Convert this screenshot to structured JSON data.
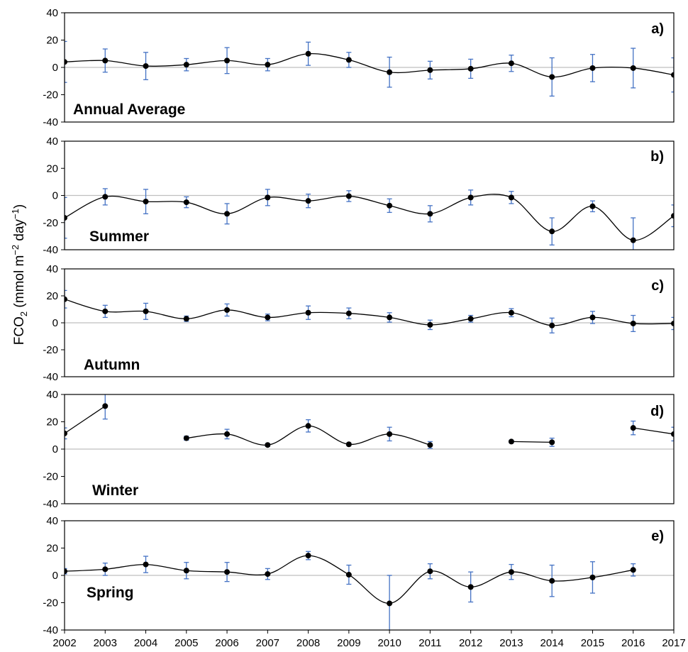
{
  "chart_data": {
    "type": "line",
    "x": [
      2002,
      2003,
      2004,
      2005,
      2006,
      2007,
      2008,
      2009,
      2010,
      2011,
      2012,
      2013,
      2014,
      2015,
      2016,
      2017
    ],
    "x_tick_labels": [
      "2002",
      "2003",
      "2004",
      "2005",
      "2006",
      "2007",
      "2008",
      "2009",
      "2010",
      "2011",
      "2012",
      "2013",
      "2014",
      "2015",
      "2016",
      "2017"
    ],
    "ylabel": "FCO2 (mmol m−2 day−1)",
    "ylabel_parts": {
      "main": "FCO",
      "sub": "2",
      "rest": " (mmol m",
      "sup1": "−2",
      "mid": " day",
      "sup2": "−1",
      "close": ")"
    },
    "ylim": [
      -40,
      40
    ],
    "y_ticks": [
      -40,
      -20,
      0,
      20,
      40
    ],
    "y_tick_labels": [
      "-40",
      "-20",
      "0",
      "20",
      "40"
    ],
    "colors": {
      "line": "#000000",
      "marker": "#000000",
      "error_bar": "#4472c4",
      "zero_line": "#bfbfbf",
      "frame": "#000000"
    },
    "panels": [
      {
        "letter": "a)",
        "label": "Annual Average",
        "values": [
          4,
          5,
          1,
          2,
          5,
          2,
          10,
          5.5,
          -3.5,
          -2,
          -1,
          3,
          -7,
          -0.5,
          -0.5,
          -5.5
        ],
        "errors": [
          15,
          8.5,
          10,
          4.5,
          9.5,
          4.5,
          8.5,
          5.5,
          11,
          6.5,
          7,
          6,
          14,
          10,
          14.5,
          12.5
        ]
      },
      {
        "letter": "b)",
        "label": "Summer",
        "values": [
          -16.5,
          -1,
          -4.5,
          -5,
          -13.5,
          -1.5,
          -4,
          -0.5,
          -7.5,
          -13.5,
          -1.5,
          -1.5,
          -26.5,
          -8,
          -33,
          -15
        ],
        "errors": [
          15,
          6,
          9,
          4,
          7.5,
          6,
          5,
          4,
          5,
          6,
          5.5,
          4.5,
          10,
          4,
          16.5,
          8
        ]
      },
      {
        "letter": "c)",
        "label": "Autumn",
        "values": [
          17.5,
          8.5,
          8.5,
          3,
          9.5,
          4,
          7.5,
          7,
          4,
          -1.5,
          3,
          7.5,
          -2,
          4,
          -0.5,
          -0.5
        ],
        "errors": [
          6.5,
          4.5,
          6,
          2,
          4.5,
          2.5,
          5,
          4,
          3.5,
          3.5,
          2.5,
          3,
          5.5,
          4.5,
          6,
          4.5
        ]
      },
      {
        "letter": "d)",
        "label": "Winter",
        "values": [
          11.5,
          31.5,
          null,
          8,
          11,
          3,
          17,
          3.5,
          11,
          3,
          null,
          5.5,
          5,
          null,
          15.5,
          11
        ],
        "errors": [
          4,
          9.5,
          null,
          1.5,
          3.5,
          1,
          4.5,
          1,
          5,
          2.5,
          null,
          1,
          3,
          null,
          5,
          5
        ]
      },
      {
        "letter": "e)",
        "label": "Spring",
        "values": [
          3,
          4.5,
          8,
          3.5,
          2.5,
          1,
          14.5,
          0.5,
          -20.5,
          3,
          -8.5,
          2.5,
          -4,
          -1.5,
          4,
          null
        ],
        "errors": [
          2,
          4.5,
          6,
          6,
          7,
          4,
          3,
          7,
          20.5,
          5.5,
          11,
          5.5,
          11.5,
          11.5,
          4.5,
          null
        ]
      }
    ]
  }
}
